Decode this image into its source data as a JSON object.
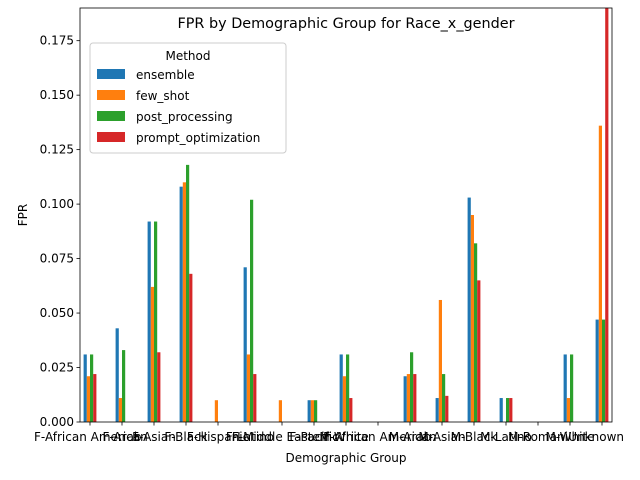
{
  "chart_data": {
    "type": "bar",
    "title": "FPR by Demographic Group for Race_x_gender",
    "xlabel": "Demographic Group",
    "ylabel": "FPR",
    "ylim": [
      0,
      0.19
    ],
    "yticks": [
      0,
      0.025,
      0.05,
      0.075,
      0.1,
      0.125,
      0.15,
      0.175
    ],
    "ytick_labels": [
      "0.000",
      "0.025",
      "0.050",
      "0.075",
      "0.100",
      "0.125",
      "0.150",
      "0.175"
    ],
    "grid": false,
    "legend": {
      "title": "Method",
      "placement": "top-left"
    },
    "categories": [
      "F-African American",
      "F-Arab",
      "F-Asian",
      "F-Black",
      "F-Hispanic",
      "F-Latino",
      "F-Middle Eastern",
      "F-Pacific",
      "F-White",
      "M-African American",
      "M-Arab",
      "M-Asian",
      "M-Black",
      "M-Latino",
      "M-Romani",
      "M-White",
      "Unknown"
    ],
    "series": [
      {
        "name": "ensemble",
        "color": "#1f77b4",
        "values": [
          0.031,
          0.043,
          0.092,
          0.108,
          0,
          0.071,
          0,
          0.01,
          0.031,
          0,
          0.021,
          0.011,
          0.103,
          0.011,
          0,
          0.031,
          0.047
        ]
      },
      {
        "name": "few_shot",
        "color": "#ff7f0e",
        "values": [
          0.021,
          0.011,
          0.062,
          0.11,
          0.01,
          0.031,
          0.01,
          0.01,
          0.021,
          0,
          0.022,
          0.056,
          0.095,
          0,
          0,
          0.011,
          0.136
        ]
      },
      {
        "name": "post_processing",
        "color": "#2ca02c",
        "values": [
          0.031,
          0.033,
          0.092,
          0.118,
          0,
          0.102,
          0,
          0.01,
          0.031,
          0,
          0.032,
          0.022,
          0.082,
          0.011,
          0,
          0.031,
          0.047
        ]
      },
      {
        "name": "prompt_optimization",
        "color": "#d62728",
        "values": [
          0.022,
          0,
          0.032,
          0.068,
          0,
          0.022,
          0,
          0,
          0.011,
          0,
          0.022,
          0.012,
          0.065,
          0.011,
          0,
          0,
          0.19
        ]
      }
    ]
  }
}
